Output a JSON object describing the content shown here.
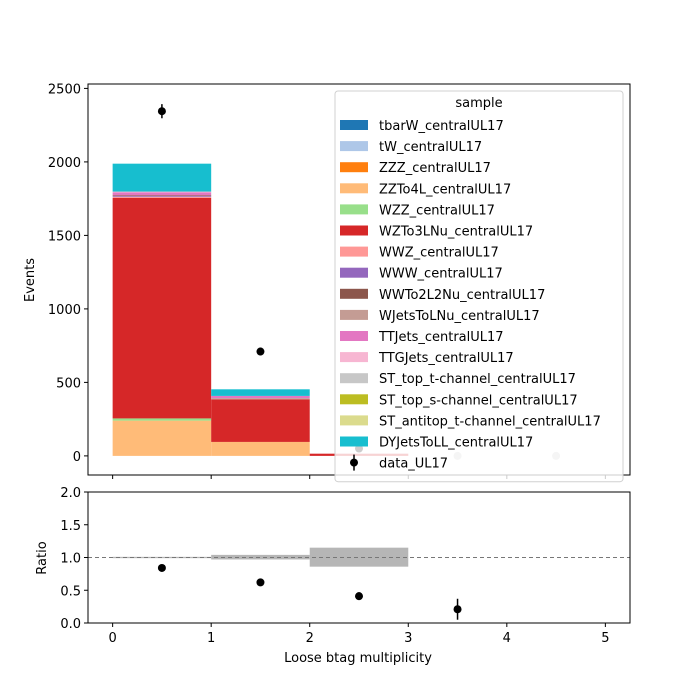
{
  "chart_data": [
    {
      "type": "bar",
      "stacked": true,
      "ylabel": "Events",
      "xlabel": "",
      "ylim": [
        -130,
        2530
      ],
      "xlim": [
        -0.25,
        5.25
      ],
      "yticks": [
        0,
        500,
        1000,
        1500,
        2000,
        2500
      ],
      "xticks": [
        0,
        1,
        2,
        3,
        4,
        5
      ],
      "bin_edges": [
        0,
        1,
        2,
        3,
        4,
        5
      ],
      "legend_title": "sample",
      "legend_position": "top-right",
      "series": [
        {
          "name": "tbarW_centralUL17",
          "color": "#1f77b4",
          "values": [
            0,
            0,
            0,
            0,
            0
          ]
        },
        {
          "name": "tW_centralUL17",
          "color": "#aec7e8",
          "values": [
            0,
            0,
            0,
            0,
            0
          ]
        },
        {
          "name": "ZZZ_centralUL17",
          "color": "#ff7f0e",
          "values": [
            0,
            0,
            0,
            0,
            0
          ]
        },
        {
          "name": "ZZTo4L_centralUL17",
          "color": "#ffbb78",
          "values": [
            240,
            95,
            0,
            0,
            0
          ]
        },
        {
          "name": "WZZ_centralUL17",
          "color": "#98df8a",
          "values": [
            15,
            0,
            0,
            0,
            0
          ]
        },
        {
          "name": "WZTo3LNu_centralUL17",
          "color": "#d62728",
          "values": [
            1500,
            290,
            15,
            0,
            0
          ]
        },
        {
          "name": "WWZ_centralUL17",
          "color": "#ff9896",
          "values": [
            8,
            0,
            0,
            0,
            0
          ]
        },
        {
          "name": "WWW_centralUL17",
          "color": "#9467bd",
          "values": [
            5,
            0,
            0,
            0,
            0
          ]
        },
        {
          "name": "WWTo2L2Nu_centralUL17",
          "color": "#8c564b",
          "values": [
            5,
            0,
            0,
            0,
            0
          ]
        },
        {
          "name": "WJetsToLNu_centralUL17",
          "color": "#c49c94",
          "values": [
            0,
            8,
            0,
            0,
            0
          ]
        },
        {
          "name": "TTJets_centralUL17",
          "color": "#e377c2",
          "values": [
            20,
            15,
            0,
            0,
            0
          ]
        },
        {
          "name": "TTGJets_centralUL17",
          "color": "#f7b6d2",
          "values": [
            5,
            0,
            0,
            0,
            0
          ]
        },
        {
          "name": "ST_top_t-channel_centralUL17",
          "color": "#c7c7c7",
          "values": [
            0,
            0,
            0,
            0,
            0
          ]
        },
        {
          "name": "ST_top_s-channel_centralUL17",
          "color": "#bcbd22",
          "values": [
            0,
            0,
            0,
            0,
            0
          ]
        },
        {
          "name": "ST_antitop_t-channel_centralUL17",
          "color": "#dbdb8d",
          "values": [
            0,
            0,
            0,
            0,
            0
          ]
        },
        {
          "name": "DYJetsToLL_centralUL17",
          "color": "#17becf",
          "values": [
            190,
            45,
            0,
            0,
            0
          ]
        }
      ],
      "data_points": {
        "name": "data_UL17",
        "x": [
          0.5,
          1.5,
          2.5,
          3.5,
          4.5
        ],
        "y": [
          2345,
          710,
          50,
          0,
          0
        ],
        "yerr": [
          48,
          27,
          7,
          1.5,
          0
        ],
        "empty_marker_color": "#cccccc"
      }
    },
    {
      "type": "scatter",
      "ylabel": "Ratio",
      "xlabel": "Loose btag multiplicity",
      "ylim": [
        0.0,
        2.0
      ],
      "xlim": [
        -0.25,
        5.25
      ],
      "yticks": [
        "0.0",
        "0.5",
        "1.0",
        "1.5",
        "2.0"
      ],
      "xticks": [
        "0",
        "1",
        "2",
        "3",
        "4",
        "5"
      ],
      "reference_line": 1.0,
      "uncertainty_bands": [
        {
          "x0": 0,
          "x1": 1,
          "lo": 0.99,
          "hi": 1.01
        },
        {
          "x0": 1,
          "x1": 2,
          "lo": 0.97,
          "hi": 1.04
        },
        {
          "x0": 2,
          "x1": 3,
          "lo": 0.86,
          "hi": 1.15
        }
      ],
      "band_color": "#a9a9a9",
      "points": {
        "x": [
          0.5,
          1.5,
          2.5,
          3.5
        ],
        "y": [
          0.84,
          0.62,
          0.41,
          0.21
        ],
        "yerr": [
          0.02,
          0.025,
          0.06,
          0.16
        ]
      }
    }
  ]
}
